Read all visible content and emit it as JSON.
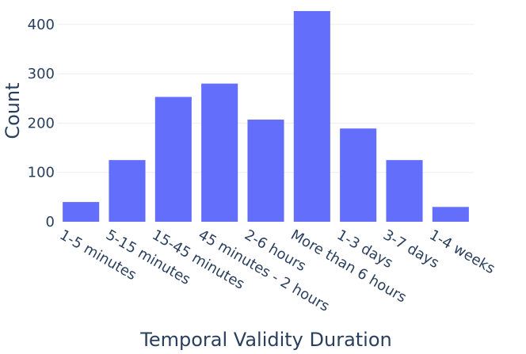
{
  "chart_data": {
    "type": "bar",
    "title": "",
    "xlabel": "Temporal Validity Duration",
    "ylabel": "Count",
    "categories": [
      "1-5 minutes",
      "5-15 minutes",
      "15-45 minutes",
      "45 minutes - 2 hours",
      "2-6 hours",
      "More than 6 hours",
      "1-3 days",
      "3-7 days",
      "1-4 weeks"
    ],
    "values": [
      40,
      125,
      253,
      280,
      207,
      427,
      189,
      125,
      30
    ],
    "ylim": [
      0,
      430
    ],
    "yticks": [
      0,
      100,
      200,
      300,
      400
    ],
    "grid": true,
    "legend": "none",
    "colors": {
      "bar": "#636efa",
      "grid": "#eeeeee",
      "text": "#2a3f5f",
      "background": "#ffffff"
    }
  }
}
